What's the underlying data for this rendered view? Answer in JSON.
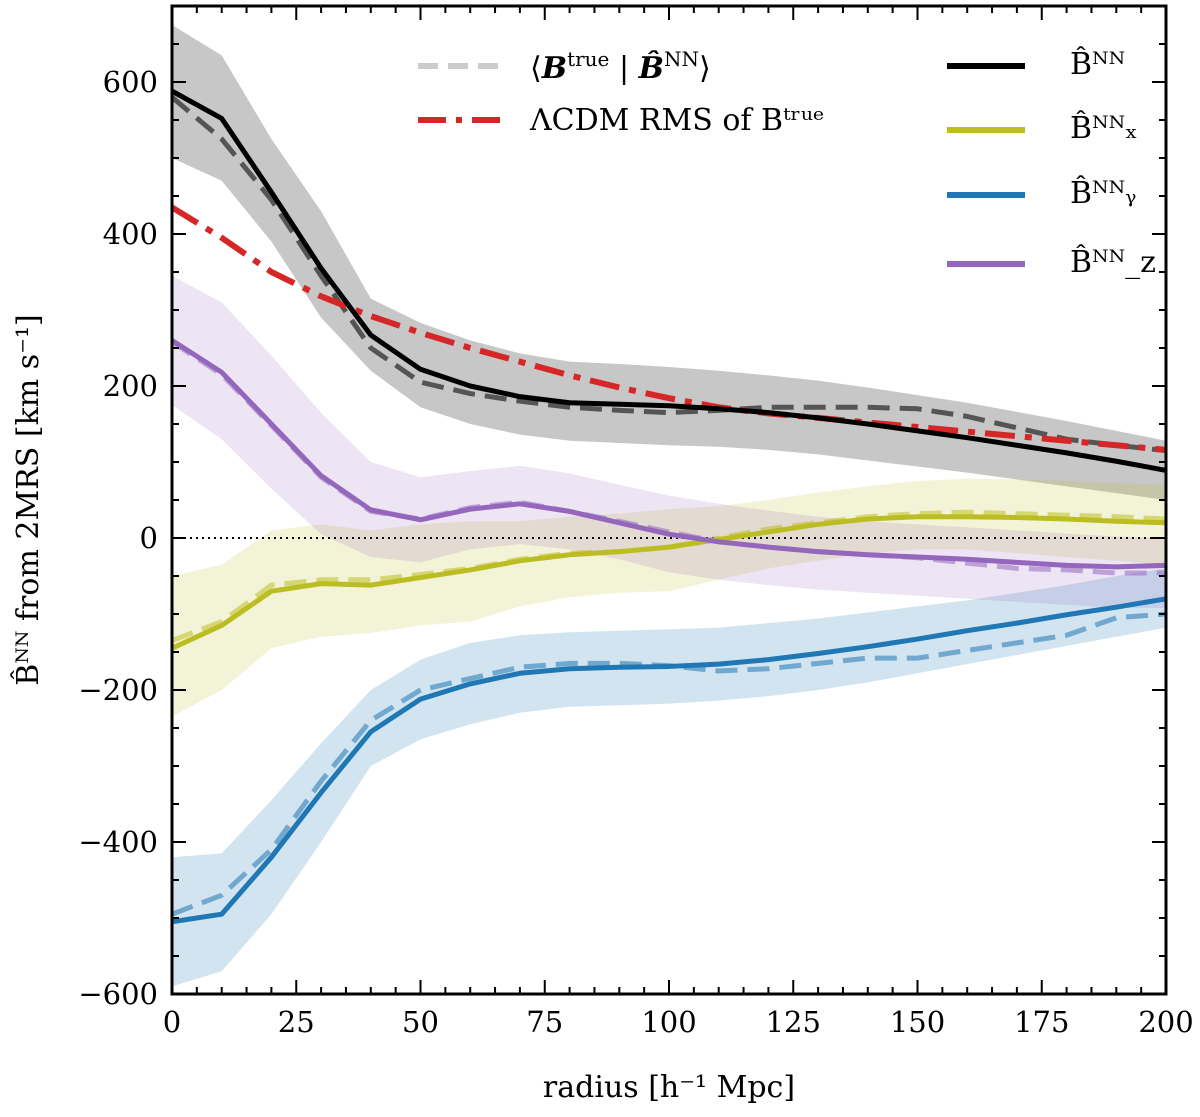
{
  "chart_data": {
    "type": "line",
    "xlabel": "radius [h⁻¹ Mpc]",
    "ylabel": "B̂ᴺᴺ from 2MRS [km s⁻¹]",
    "xlim": [
      0,
      200
    ],
    "ylim": [
      -600,
      700
    ],
    "x_ticks": [
      0,
      25,
      50,
      75,
      100,
      125,
      150,
      175,
      200
    ],
    "x_tick_labels": [
      "0",
      "25",
      "50",
      "75",
      "100",
      "125",
      "150",
      "175",
      "200"
    ],
    "y_ticks": [
      -600,
      -400,
      -200,
      0,
      200,
      400,
      600
    ],
    "y_tick_labels": [
      "−600",
      "−400",
      "−200",
      "0",
      "200",
      "400",
      "600"
    ],
    "zero_line": 0,
    "x": [
      0,
      10,
      20,
      30,
      40,
      50,
      60,
      70,
      80,
      90,
      100,
      110,
      120,
      130,
      140,
      150,
      160,
      170,
      180,
      190,
      200
    ],
    "series": [
      {
        "name": "B̂ᴺᴺ",
        "color": "#000000",
        "values": [
          588,
          552,
          455,
          355,
          267,
          222,
          200,
          186,
          178,
          176,
          174,
          170,
          165,
          158,
          150,
          141,
          132,
          122,
          112,
          101,
          89
        ],
        "band_upper": [
          675,
          635,
          525,
          430,
          315,
          283,
          260,
          243,
          232,
          229,
          225,
          220,
          214,
          207,
          198,
          188,
          178,
          166,
          154,
          141,
          128
        ],
        "band_lower": [
          500,
          470,
          390,
          290,
          220,
          172,
          150,
          136,
          128,
          125,
          122,
          120,
          116,
          110,
          102,
          94,
          86,
          77,
          68,
          59,
          50
        ],
        "dashed": [
          580,
          525,
          445,
          345,
          250,
          205,
          190,
          180,
          172,
          168,
          165,
          168,
          172,
          172,
          172,
          170,
          160,
          145,
          130,
          122,
          115
        ]
      },
      {
        "name": "B̂ᴺᴺₓ",
        "color": "#bcbd22",
        "values": [
          -145,
          -115,
          -70,
          -60,
          -62,
          -52,
          -42,
          -30,
          -22,
          -18,
          -12,
          -2,
          8,
          18,
          25,
          28,
          28,
          27,
          25,
          22,
          20
        ],
        "band_upper": [
          -50,
          -35,
          10,
          18,
          10,
          18,
          22,
          22,
          28,
          32,
          38,
          42,
          50,
          60,
          68,
          75,
          78,
          77,
          75,
          72,
          70
        ],
        "band_lower": [
          -235,
          -200,
          -145,
          -130,
          -125,
          -115,
          -110,
          -90,
          -78,
          -72,
          -70,
          -55,
          -40,
          -30,
          -20,
          -15,
          -15,
          -20,
          -25,
          -30,
          -35
        ],
        "dashed": [
          -135,
          -110,
          -62,
          -55,
          -55,
          -48,
          -40,
          -28,
          -20,
          -18,
          -12,
          0,
          12,
          20,
          28,
          32,
          34,
          32,
          30,
          28,
          25
        ]
      },
      {
        "name": "B̂ᴺᴺᵧ",
        "color": "#1f77b4",
        "values": [
          -505,
          -495,
          -420,
          -335,
          -255,
          -212,
          -192,
          -178,
          -172,
          -170,
          -169,
          -166,
          -160,
          -152,
          -143,
          -133,
          -122,
          -112,
          -101,
          -91,
          -80
        ],
        "band_upper": [
          -420,
          -415,
          -345,
          -270,
          -200,
          -160,
          -138,
          -128,
          -124,
          -122,
          -120,
          -118,
          -112,
          -106,
          -98,
          -90,
          -82,
          -72,
          -62,
          -50,
          -40
        ],
        "band_lower": [
          -590,
          -570,
          -495,
          -400,
          -300,
          -265,
          -245,
          -230,
          -222,
          -220,
          -218,
          -214,
          -208,
          -200,
          -190,
          -178,
          -166,
          -154,
          -142,
          -130,
          -118
        ],
        "dashed": [
          -495,
          -470,
          -410,
          -320,
          -240,
          -200,
          -185,
          -170,
          -165,
          -165,
          -168,
          -175,
          -172,
          -165,
          -158,
          -158,
          -148,
          -138,
          -128,
          -105,
          -100
        ]
      },
      {
        "name": "B̂ᴺᴺ_z",
        "color": "#9467bd",
        "values": [
          260,
          218,
          150,
          82,
          37,
          24,
          38,
          45,
          35,
          20,
          5,
          -5,
          -12,
          -18,
          -22,
          -25,
          -28,
          -32,
          -36,
          -38,
          -36
        ],
        "band_upper": [
          345,
          310,
          240,
          165,
          100,
          80,
          88,
          95,
          85,
          70,
          56,
          45,
          36,
          28,
          22,
          18,
          14,
          10,
          6,
          2,
          0
        ],
        "band_lower": [
          175,
          130,
          65,
          5,
          -25,
          -32,
          -15,
          -8,
          -15,
          -28,
          -45,
          -55,
          -62,
          -68,
          -72,
          -76,
          -80,
          -84,
          -88,
          -92,
          -92
        ],
        "dashed": [
          258,
          215,
          148,
          80,
          35,
          25,
          40,
          47,
          35,
          22,
          8,
          -5,
          -12,
          -18,
          -22,
          -26,
          -33,
          -40,
          -42,
          -46,
          -46
        ]
      }
    ],
    "lcdm_rms": {
      "name": "ΛCDM RMS of Bᵗʳᵘᵉ",
      "color": "#d62728",
      "values": [
        435,
        395,
        350,
        318,
        292,
        270,
        250,
        232,
        214,
        198,
        184,
        172,
        164,
        158,
        152,
        146,
        140,
        134,
        128,
        122,
        116
      ]
    },
    "legend": [
      {
        "key": "dashed_mean",
        "label": "⟨Bᵗʳᵘᵉ | B̂ᴺᴺ⟩",
        "color": "#cccccc",
        "style": "dashed"
      },
      {
        "key": "lcdm",
        "label": "ΛCDM RMS of Bᵗʳᵘᵉ",
        "color": "#d62728",
        "style": "dashdot"
      },
      {
        "key": "b",
        "label": "B̂ᴺᴺ",
        "color": "#000000",
        "style": "solid"
      },
      {
        "key": "bx",
        "label": "B̂ᴺᴺₓ",
        "color": "#bcbd22",
        "style": "solid"
      },
      {
        "key": "by",
        "label": "B̂ᴺᴺᵧ",
        "color": "#1f77b4",
        "style": "solid"
      },
      {
        "key": "bz",
        "label": "B̂ᴺᴺ_z",
        "color": "#9467bd",
        "style": "solid"
      }
    ]
  }
}
